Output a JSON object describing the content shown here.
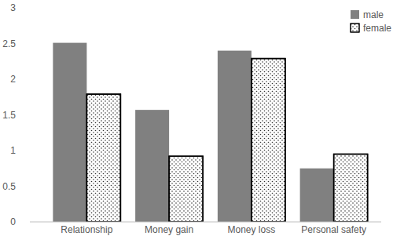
{
  "chart_data": {
    "type": "bar",
    "categories": [
      "Relationship",
      "Money gain",
      "Money loss",
      "Personal safety"
    ],
    "series": [
      {
        "name": "male",
        "color": "#808080",
        "values": [
          2.51,
          1.57,
          2.4,
          0.75
        ]
      },
      {
        "name": "female",
        "color": "#ffffff",
        "values": [
          1.79,
          0.92,
          2.29,
          0.95
        ]
      }
    ],
    "ylim": [
      0,
      3
    ],
    "yticks": [
      0,
      0.5,
      1,
      1.5,
      2,
      2.5,
      3
    ],
    "grid": false,
    "legend": "top-right"
  }
}
